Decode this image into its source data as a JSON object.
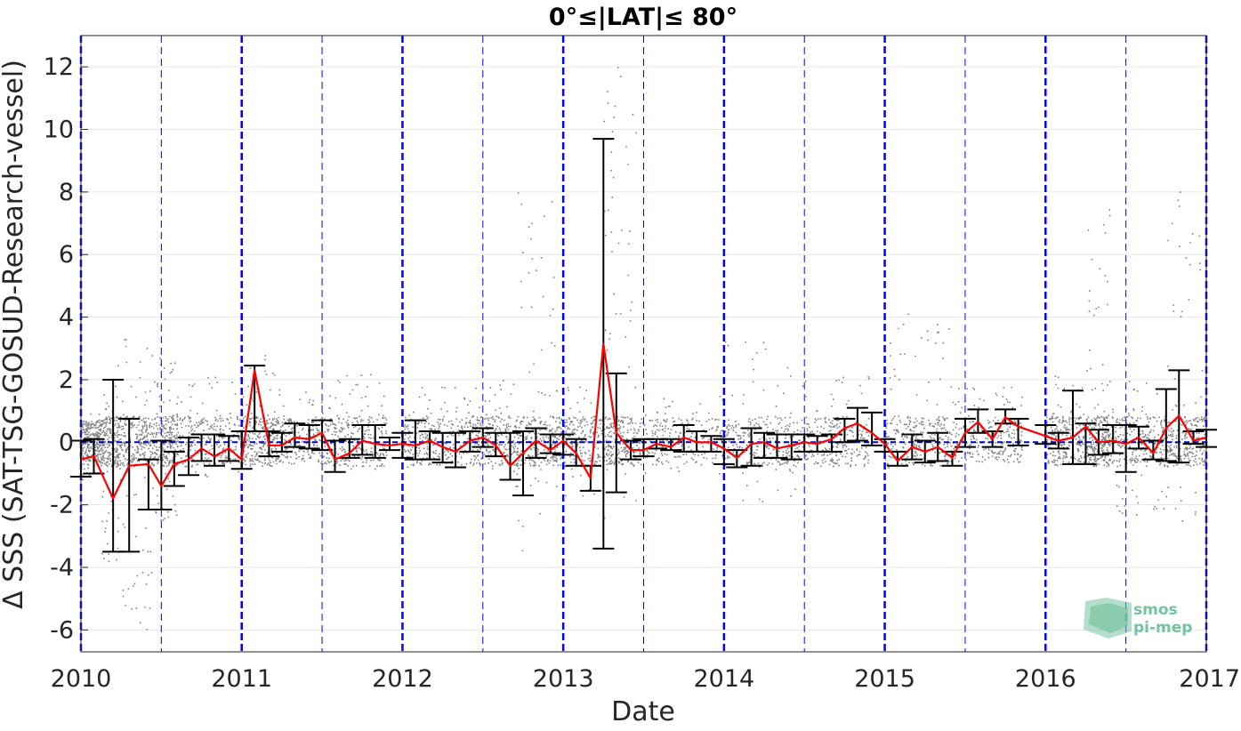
{
  "chart_data": {
    "type": "line",
    "title": "0°≤|LAT|≤ 80°",
    "xlabel": "Date",
    "ylabel": "Δ SSS (SAT-TSG-GOSUD-Research-vessel)",
    "xlim": [
      2010,
      2017
    ],
    "ylim": [
      -6.7,
      13
    ],
    "x_ticks": [
      "2010",
      "2011",
      "2012",
      "2013",
      "2014",
      "2015",
      "2016",
      "2017"
    ],
    "y_ticks": [
      "-6",
      "-4",
      "-2",
      "0",
      "2",
      "4",
      "6",
      "8",
      "10",
      "12"
    ],
    "grid": "horizontal",
    "reference_line": 0,
    "year_lines": [
      2010,
      2011,
      2012,
      2013,
      2014,
      2015,
      2016,
      2017
    ],
    "halfyear_lines": [
      2010.5,
      2011.5,
      2012.5,
      2013.5,
      2014.5,
      2015.5,
      2016.5
    ],
    "colors": {
      "mean_line": "#ff0000",
      "error_bars": "#000000",
      "scatter": "#808080",
      "year_lines": "#0000ff",
      "zero_line": "#0000cc",
      "grid": "#e6e6e6",
      "logo": "#74c3a0"
    },
    "logo": {
      "line1": "smos",
      "line2": "pi-mep"
    },
    "series": [
      {
        "name": "mean",
        "x": [
          2010.0,
          2010.08,
          2010.2,
          2010.3,
          2010.42,
          2010.5,
          2010.58,
          2010.67,
          2010.75,
          2010.83,
          2010.92,
          2011.0,
          2011.08,
          2011.17,
          2011.25,
          2011.33,
          2011.42,
          2011.5,
          2011.58,
          2011.67,
          2011.75,
          2011.83,
          2011.92,
          2012.0,
          2012.08,
          2012.17,
          2012.25,
          2012.33,
          2012.42,
          2012.5,
          2012.58,
          2012.67,
          2012.75,
          2012.83,
          2012.92,
          2013.0,
          2013.08,
          2013.17,
          2013.25,
          2013.33,
          2013.42,
          2013.5,
          2013.58,
          2013.67,
          2013.75,
          2013.83,
          2013.92,
          2014.0,
          2014.08,
          2014.17,
          2014.25,
          2014.33,
          2014.42,
          2014.5,
          2014.58,
          2014.67,
          2014.75,
          2014.83,
          2014.92,
          2015.0,
          2015.08,
          2015.17,
          2015.25,
          2015.33,
          2015.42,
          2015.5,
          2015.58,
          2015.67,
          2015.75,
          2015.83,
          2016.0,
          2016.08,
          2016.17,
          2016.25,
          2016.33,
          2016.42,
          2016.5,
          2016.58,
          2016.67,
          2016.75,
          2016.83,
          2016.92,
          2017.0
        ],
        "mean": [
          -0.55,
          -0.45,
          -1.8,
          -0.75,
          -0.7,
          -1.4,
          -0.7,
          -0.55,
          -0.2,
          -0.45,
          -0.2,
          -0.55,
          2.3,
          -0.1,
          -0.1,
          0.15,
          0.1,
          0.3,
          -0.55,
          -0.35,
          0.05,
          -0.05,
          -0.1,
          -0.05,
          -0.1,
          0.05,
          -0.15,
          -0.3,
          0.05,
          0.15,
          -0.1,
          -0.75,
          -0.35,
          0.05,
          -0.25,
          0.05,
          -0.35,
          -1.15,
          3.15,
          0.3,
          -0.25,
          -0.25,
          -0.05,
          -0.15,
          0.15,
          0.0,
          0.0,
          -0.2,
          -0.5,
          -0.05,
          0.0,
          -0.2,
          -0.1,
          0.0,
          -0.05,
          0.1,
          0.45,
          0.6,
          0.3,
          -0.05,
          -0.6,
          -0.15,
          -0.3,
          -0.15,
          -0.5,
          0.3,
          0.65,
          0.1,
          0.8,
          0.5,
          0.2,
          0.05,
          0.15,
          0.5,
          0.0,
          0.05,
          -0.05,
          0.15,
          -0.35,
          0.45,
          0.85,
          0.05,
          0.15
        ],
        "lo": [
          -1.1,
          -1.0,
          -3.5,
          -3.5,
          -2.15,
          -2.15,
          -1.4,
          -1.05,
          -0.6,
          -0.75,
          -0.6,
          -0.85,
          0.35,
          -0.45,
          -0.3,
          -0.15,
          -0.2,
          -0.25,
          -0.95,
          -0.5,
          -0.4,
          -0.5,
          -0.25,
          -0.5,
          -0.55,
          -0.55,
          -0.65,
          -0.8,
          -0.3,
          -0.15,
          -0.45,
          -1.2,
          -1.7,
          -0.5,
          -0.35,
          -0.4,
          -0.75,
          -1.55,
          -3.4,
          -1.6,
          -0.55,
          -0.45,
          -0.2,
          -0.25,
          -0.3,
          -0.3,
          -0.3,
          -0.7,
          -0.8,
          -0.75,
          -0.5,
          -0.5,
          -0.55,
          -0.3,
          -0.3,
          -0.3,
          0.0,
          0.05,
          -0.1,
          -0.3,
          -0.75,
          -0.55,
          -0.65,
          -0.6,
          -0.75,
          -0.15,
          0.3,
          -0.15,
          0.6,
          -0.1,
          -0.05,
          -0.2,
          -0.7,
          -0.7,
          -0.4,
          -0.35,
          -0.95,
          -0.2,
          -0.55,
          -0.6,
          -0.65,
          -0.05,
          -0.15
        ],
        "hi": [
          0.05,
          0.1,
          2.0,
          0.75,
          -0.55,
          0.05,
          -0.3,
          0.15,
          0.25,
          0.25,
          0.2,
          0.35,
          2.45,
          0.35,
          0.3,
          0.6,
          0.55,
          0.7,
          0.05,
          0.1,
          0.55,
          0.55,
          0.15,
          0.3,
          0.7,
          0.35,
          0.3,
          0.3,
          0.35,
          0.45,
          0.3,
          0.3,
          0.35,
          0.45,
          0.25,
          0.25,
          0.1,
          -0.75,
          9.7,
          2.2,
          0.05,
          0.1,
          0.1,
          0.1,
          0.55,
          0.35,
          0.2,
          0.1,
          -0.25,
          0.45,
          0.3,
          0.25,
          0.25,
          0.25,
          0.2,
          0.25,
          0.75,
          1.1,
          0.95,
          0.1,
          -0.3,
          0.25,
          0.05,
          0.3,
          -0.3,
          0.75,
          1.05,
          0.35,
          1.05,
          0.75,
          0.55,
          0.3,
          1.65,
          0.6,
          0.4,
          0.55,
          0.55,
          0.5,
          0.05,
          1.7,
          2.3,
          0.35,
          0.4
        ]
      }
    ],
    "scatter_envelope": [
      {
        "x": [
          2010.0,
          2010.12
        ],
        "y": [
          -1.2,
          1.0
        ]
      },
      {
        "x": [
          2010.12,
          2010.25
        ],
        "y": [
          -4.0,
          2.5
        ]
      },
      {
        "x": [
          2010.25,
          2010.45
        ],
        "y": [
          -6.0,
          3.4
        ]
      },
      {
        "x": [
          2010.45,
          2010.6
        ],
        "y": [
          -2.5,
          2.7
        ]
      },
      {
        "x": [
          2010.6,
          2011.0
        ],
        "y": [
          -1.2,
          2.2
        ]
      },
      {
        "x": [
          2011.0,
          2011.2
        ],
        "y": [
          -0.5,
          2.8
        ]
      },
      {
        "x": [
          2011.2,
          2011.55
        ],
        "y": [
          -0.6,
          1.8
        ]
      },
      {
        "x": [
          2011.55,
          2011.9
        ],
        "y": [
          -1.0,
          2.2
        ]
      },
      {
        "x": [
          2012.0,
          2012.4
        ],
        "y": [
          -0.8,
          1.8
        ]
      },
      {
        "x": [
          2012.4,
          2012.7
        ],
        "y": [
          -1.0,
          2.0
        ]
      },
      {
        "x": [
          2012.7,
          2012.95
        ],
        "y": [
          -4.0,
          8.0
        ]
      },
      {
        "x": [
          2012.95,
          2013.25
        ],
        "y": [
          -1.8,
          1.8
        ]
      },
      {
        "x": [
          2013.25,
          2013.45
        ],
        "y": [
          -3.0,
          13.0
        ]
      },
      {
        "x": [
          2013.45,
          2014.0
        ],
        "y": [
          -1.0,
          1.5
        ]
      },
      {
        "x": [
          2014.0,
          2014.45
        ],
        "y": [
          -2.0,
          3.6
        ]
      },
      {
        "x": [
          2014.45,
          2014.9
        ],
        "y": [
          -0.8,
          2.2
        ]
      },
      {
        "x": [
          2015.0,
          2015.4
        ],
        "y": [
          -0.8,
          4.2
        ]
      },
      {
        "x": [
          2015.4,
          2015.85
        ],
        "y": [
          -0.5,
          1.8
        ]
      },
      {
        "x": [
          2016.0,
          2016.25
        ],
        "y": [
          -0.5,
          2.2
        ]
      },
      {
        "x": [
          2016.25,
          2016.4
        ],
        "y": [
          -1.0,
          7.5
        ]
      },
      {
        "x": [
          2016.4,
          2016.75
        ],
        "y": [
          -2.4,
          2.0
        ]
      },
      {
        "x": [
          2016.75,
          2017.0
        ],
        "y": [
          -3.0,
          8.2
        ]
      }
    ]
  }
}
